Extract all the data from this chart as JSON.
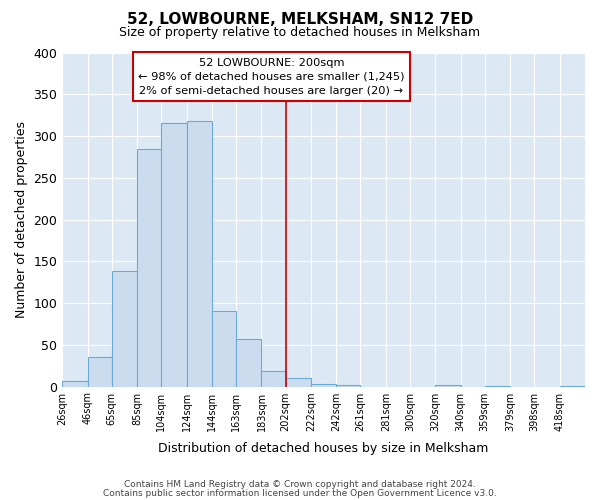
{
  "title": "52, LOWBOURNE, MELKSHAM, SN12 7ED",
  "subtitle": "Size of property relative to detached houses in Melksham",
  "xlabel": "Distribution of detached houses by size in Melksham",
  "ylabel": "Number of detached properties",
  "bin_labels": [
    "26sqm",
    "46sqm",
    "65sqm",
    "85sqm",
    "104sqm",
    "124sqm",
    "144sqm",
    "163sqm",
    "183sqm",
    "202sqm",
    "222sqm",
    "242sqm",
    "261sqm",
    "281sqm",
    "300sqm",
    "320sqm",
    "340sqm",
    "359sqm",
    "379sqm",
    "398sqm",
    "418sqm"
  ],
  "bar_heights": [
    7,
    35,
    138,
    284,
    315,
    318,
    91,
    57,
    18,
    10,
    3,
    2,
    0,
    0,
    0,
    2,
    0,
    1,
    0,
    0,
    1
  ],
  "bar_color": "#ccdcef",
  "bar_edge_color": "#6aaad4",
  "bg_color": "#dce9f5",
  "vline_color": "#cc0000",
  "annotation_title": "52 LOWBOURNE: 200sqm",
  "annotation_line1": "← 98% of detached houses are smaller (1,245)",
  "annotation_line2": "2% of semi-detached houses are larger (20) →",
  "annotation_box_edge": "#cc0000",
  "ylim": [
    0,
    400
  ],
  "yticks": [
    0,
    50,
    100,
    150,
    200,
    250,
    300,
    350,
    400
  ],
  "footer1": "Contains HM Land Registry data © Crown copyright and database right 2024.",
  "footer2": "Contains public sector information licensed under the Open Government Licence v3.0."
}
